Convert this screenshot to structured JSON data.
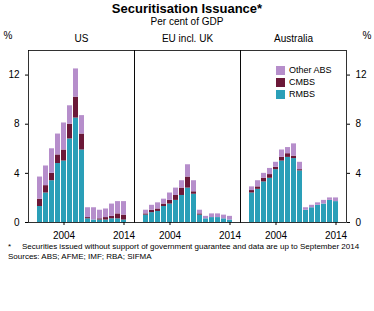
{
  "chart_data": {
    "type": "bar",
    "title": "Securitisation Issuance*",
    "subtitle": "Per cent of GDP",
    "footnote_marker": "*",
    "footnote": "Securities issued without support of government guarantee and data are up to September 2014",
    "sources": "Sources: ABS; AFME; IMF; RBA; SIFMA",
    "y_label": "%",
    "stacked": true,
    "grid": false,
    "legend": "top-right",
    "categories": [
      2000,
      2001,
      2002,
      2003,
      2004,
      2005,
      2006,
      2007,
      2008,
      2009,
      2010,
      2011,
      2012,
      2013,
      2014
    ],
    "xticks": [
      2004,
      2014
    ],
    "ylim": [
      0,
      14
    ],
    "yticks": [
      0,
      4,
      8,
      12
    ],
    "panels": [
      {
        "title": "US",
        "series": [
          {
            "name": "RMBS",
            "color": "#2a9fb8",
            "values": [
              1.3,
              2.4,
              3.4,
              4.8,
              5.0,
              6.8,
              8.5,
              5.9,
              0.3,
              0.2,
              0.2,
              0.2,
              0.3,
              0.3,
              0.2
            ]
          },
          {
            "name": "CMBS",
            "color": "#6b1838",
            "values": [
              0.6,
              0.6,
              0.6,
              0.7,
              0.9,
              1.2,
              1.7,
              1.3,
              0.1,
              0.0,
              0.1,
              0.2,
              0.2,
              0.4,
              0.4
            ]
          },
          {
            "name": "Other ABS",
            "color": "#b68ecb",
            "values": [
              1.8,
              1.6,
              2.0,
              1.7,
              2.2,
              1.5,
              2.3,
              1.5,
              0.8,
              1.0,
              0.7,
              0.7,
              1.0,
              1.0,
              1.1
            ]
          }
        ]
      },
      {
        "title": "EU incl. UK",
        "series": [
          {
            "name": "RMBS",
            "color": "#2a9fb8",
            "values": [
              0.6,
              0.8,
              0.9,
              1.3,
              1.5,
              1.8,
              2.2,
              2.8,
              2.3,
              0.6,
              0.3,
              0.4,
              0.4,
              0.3,
              0.2
            ]
          },
          {
            "name": "CMBS",
            "color": "#6b1838",
            "values": [
              0.1,
              0.2,
              0.2,
              0.2,
              0.3,
              0.4,
              0.6,
              0.9,
              0.2,
              0.1,
              0.0,
              0.0,
              0.0,
              0.0,
              0.0
            ]
          },
          {
            "name": "Other ABS",
            "color": "#b68ecb",
            "values": [
              0.3,
              0.4,
              0.5,
              0.4,
              0.6,
              0.6,
              0.6,
              1.0,
              0.9,
              0.3,
              0.2,
              0.3,
              0.3,
              0.3,
              0.3
            ]
          }
        ]
      },
      {
        "title": "Australia",
        "series": [
          {
            "name": "RMBS",
            "color": "#2a9fb8",
            "values": [
              2.4,
              2.7,
              3.3,
              3.6,
              4.3,
              5.0,
              5.3,
              5.2,
              4.2,
              1.0,
              1.2,
              1.4,
              1.5,
              1.8,
              1.7
            ]
          },
          {
            "name": "CMBS",
            "color": "#6b1838",
            "values": [
              0.2,
              0.2,
              0.3,
              0.3,
              0.2,
              0.3,
              0.3,
              0.2,
              0.1,
              0.0,
              0.0,
              0.0,
              0.0,
              0.0,
              0.0
            ]
          },
          {
            "name": "Other ABS",
            "color": "#b68ecb",
            "values": [
              0.3,
              0.5,
              0.4,
              0.5,
              0.4,
              0.6,
              0.5,
              1.0,
              0.6,
              0.2,
              0.2,
              0.2,
              0.3,
              0.2,
              0.3
            ]
          }
        ]
      }
    ]
  }
}
